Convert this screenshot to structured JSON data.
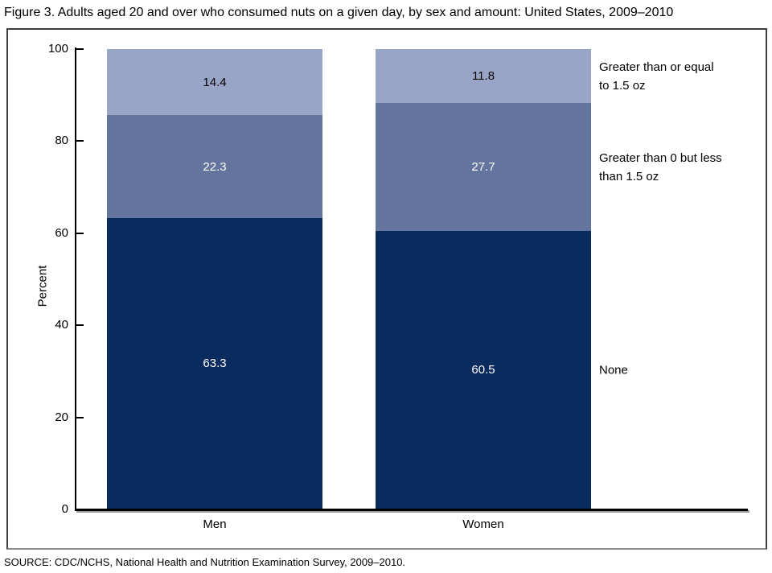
{
  "title": "Figure 3. Adults aged 20 and over who consumed nuts on a given day, by sex and amount: United States, 2009–2010",
  "source": "SOURCE: CDC/NCHS, National Health and Nutrition Examination Survey, 2009–2010.",
  "chart_data": {
    "type": "bar",
    "stacked": true,
    "title": "Figure 3. Adults aged 20 and over who consumed nuts on a given day, by sex and amount: United States, 2009–2010",
    "categories": [
      "Men",
      "Women"
    ],
    "series": [
      {
        "name": "None",
        "values": [
          63.3,
          60.5
        ],
        "color": "#0a2b5e",
        "label_color": "#ffffff",
        "legend_label": "None"
      },
      {
        "name": "Greater than 0 but less than 1.5 oz",
        "values": [
          22.3,
          27.7
        ],
        "color": "#63749e",
        "label_color": "#ffffff",
        "legend_label": "Greater than 0 but less\nthan 1.5 oz"
      },
      {
        "name": "Greater than or equal to 1.5 oz",
        "values": [
          14.4,
          11.8
        ],
        "color": "#99a5c6",
        "label_color": "#000000",
        "legend_label": "Greater than or equal\nto 1.5 oz"
      }
    ],
    "xlabel": "",
    "ylabel": "Percent",
    "ylim": [
      0,
      100
    ],
    "yticks": [
      0,
      20,
      40,
      60,
      80,
      100
    ],
    "grid": false,
    "legend_position": "right-annotations"
  }
}
